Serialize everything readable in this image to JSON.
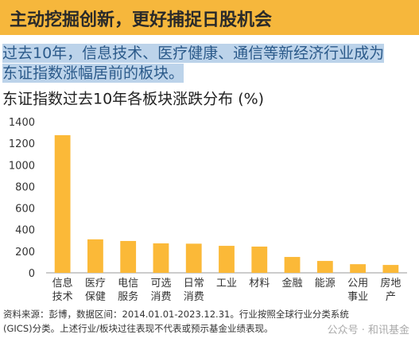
{
  "header": {
    "title": "主动挖掘创新，更好捕捉日股机会"
  },
  "highlight": {
    "lines": [
      "过去10年，信息技术、医疗健康、通信等新经济行业成为",
      "东证指数涨幅居前的板块。"
    ]
  },
  "chart_data": {
    "type": "bar",
    "title": "东证指数过去10年各板块涨跌分布 (%)",
    "categories": [
      "信息\n技术",
      "医疗\n保健",
      "电信\n服务",
      "可选\n消费",
      "日常\n消费",
      "工业",
      "材料",
      "金融",
      "能源",
      "公用\n事业",
      "房地\n产"
    ],
    "values": [
      1275,
      310,
      295,
      273,
      270,
      250,
      243,
      147,
      110,
      80,
      73
    ],
    "color": "#fbb938",
    "ylim": [
      0,
      1400
    ],
    "yticks": [
      0,
      200,
      400,
      600,
      800,
      1000,
      1200,
      1400
    ],
    "grid": false
  },
  "footer": {
    "lines": [
      "资料来源：彭博，数据区间：2014.01.01-2023.12.31。行业按照全球行业分类系统",
      "(GICS)分类。上述行业/板块过往表现不代表或预示基金业绩表现。"
    ],
    "watermark": "公众号 · 和讯基金"
  }
}
